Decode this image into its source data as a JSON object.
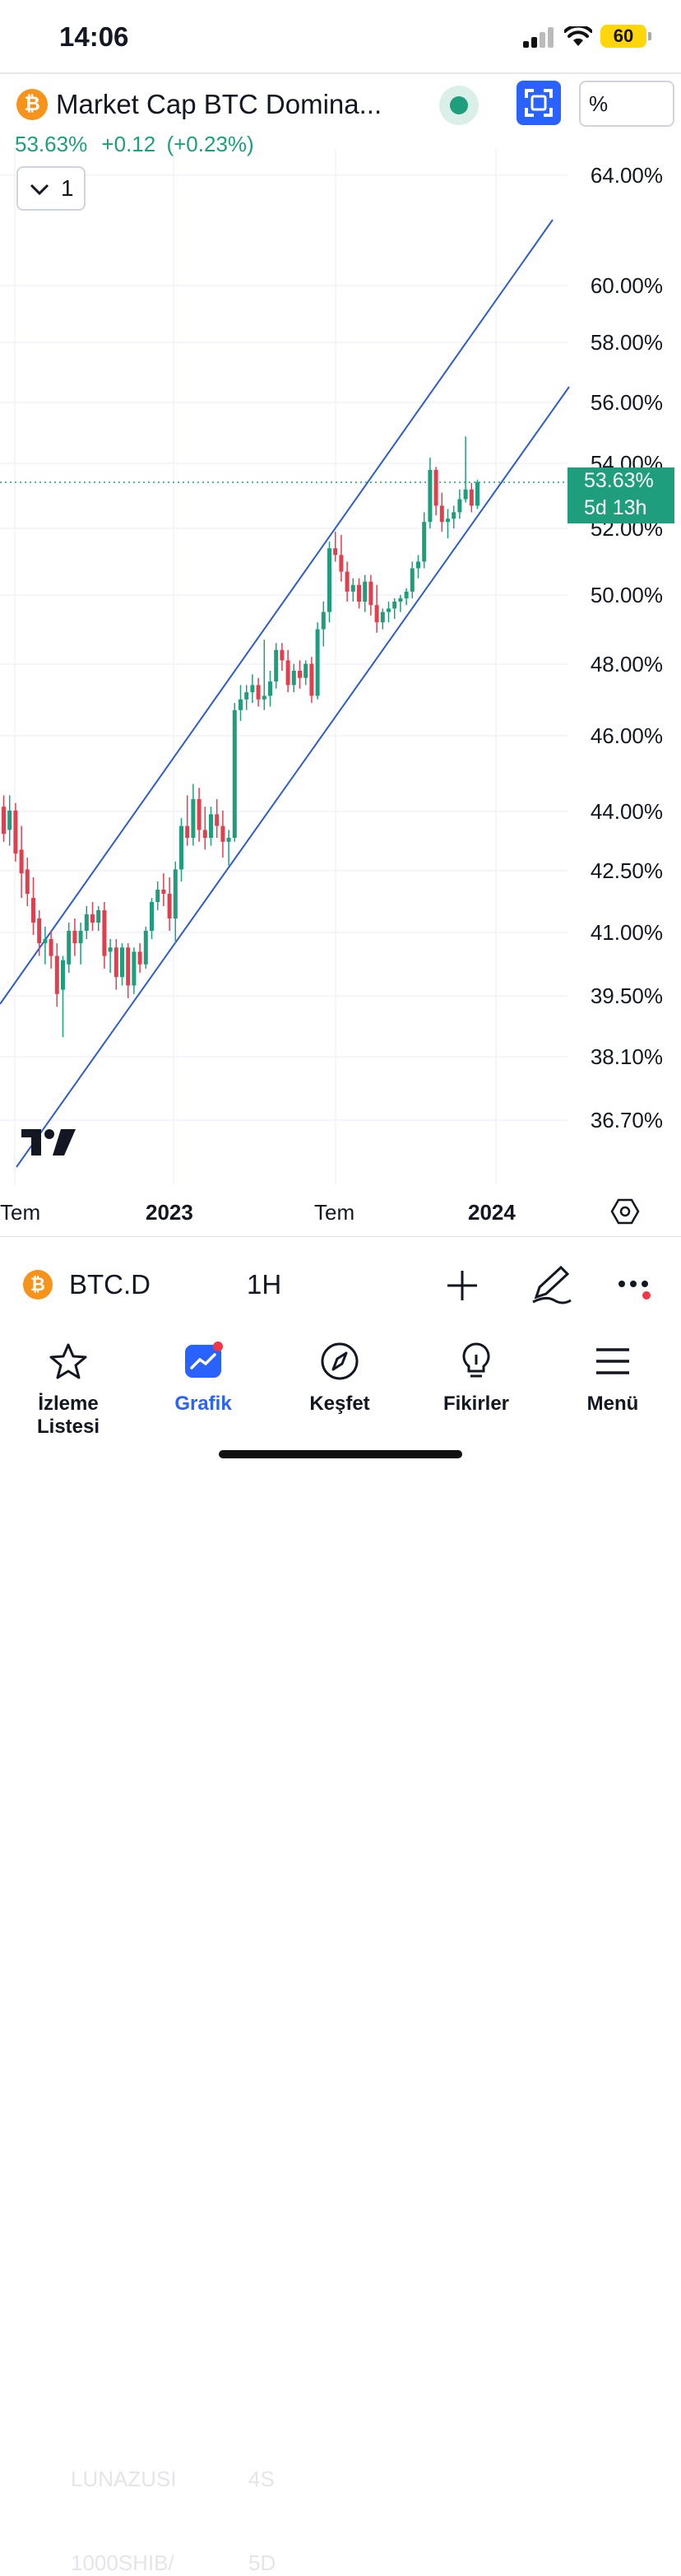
{
  "status_bar": {
    "time": "14:06",
    "battery": "60"
  },
  "header": {
    "symbol_title": "Market Cap BTC Domina...",
    "last_price": "53.63%",
    "change": "+0.12",
    "change_percent": "(+0.23%)",
    "interval_button": "1",
    "scale_button": "%",
    "btc_logo_glyph": "₿"
  },
  "colors": {
    "up": "#1e9e7c",
    "down": "#e0404d",
    "channel": "#2d5ccf",
    "accent": "#2962ff"
  },
  "chart_data": {
    "type": "candlestick",
    "y_ticks": [
      "64.00%",
      "60.00%",
      "58.00%",
      "56.00%",
      "54.00%",
      "52.00%",
      "50.00%",
      "48.00%",
      "46.00%",
      "44.00%",
      "42.50%",
      "41.00%",
      "39.50%",
      "38.10%",
      "36.70%"
    ],
    "x_ticks": [
      "Tem",
      "2023",
      "Tem",
      "2024"
    ],
    "price_tag": {
      "value": "53.63%",
      "countdown": "5d 13h"
    },
    "candles": [
      [
        44.3,
        44.6,
        43.4,
        43.6
      ],
      [
        43.7,
        44.6,
        43.3,
        44.2
      ],
      [
        44.2,
        44.4,
        42.9,
        43.1
      ],
      [
        43.2,
        43.8,
        42.0,
        42.6
      ],
      [
        42.7,
        43.0,
        41.8,
        42.1
      ],
      [
        42.0,
        42.5,
        41.1,
        41.4
      ],
      [
        41.5,
        41.7,
        40.6,
        40.9
      ],
      [
        40.9,
        41.3,
        40.4,
        41.0
      ],
      [
        41.0,
        41.2,
        40.3,
        40.6
      ],
      [
        40.6,
        40.9,
        39.4,
        39.7
      ],
      [
        39.8,
        40.6,
        38.7,
        40.5
      ],
      [
        40.4,
        41.4,
        40.2,
        41.2
      ],
      [
        41.2,
        41.5,
        40.6,
        40.9
      ],
      [
        40.9,
        41.4,
        40.4,
        41.2
      ],
      [
        41.2,
        41.8,
        41.0,
        41.6
      ],
      [
        41.6,
        41.9,
        41.2,
        41.4
      ],
      [
        41.4,
        41.8,
        41.2,
        41.7
      ],
      [
        41.7,
        41.9,
        40.3,
        40.6
      ],
      [
        40.7,
        41.0,
        40.2,
        40.8
      ],
      [
        40.8,
        41.0,
        39.8,
        40.1
      ],
      [
        40.1,
        40.9,
        39.9,
        40.8
      ],
      [
        40.8,
        40.9,
        39.6,
        39.9
      ],
      [
        39.9,
        40.8,
        39.7,
        40.7
      ],
      [
        40.7,
        40.9,
        40.2,
        40.4
      ],
      [
        40.4,
        41.3,
        40.3,
        41.2
      ],
      [
        41.2,
        42.0,
        41.0,
        41.9
      ],
      [
        41.9,
        42.4,
        41.7,
        42.2
      ],
      [
        42.2,
        42.6,
        41.8,
        42.1
      ],
      [
        42.1,
        42.5,
        41.2,
        41.5
      ],
      [
        41.5,
        42.9,
        40.9,
        42.7
      ],
      [
        42.7,
        44.0,
        42.4,
        43.8
      ],
      [
        43.8,
        44.6,
        43.3,
        43.5
      ],
      [
        43.5,
        44.9,
        43.3,
        44.5
      ],
      [
        44.5,
        44.8,
        43.4,
        43.7
      ],
      [
        43.7,
        44.3,
        43.2,
        43.5
      ],
      [
        43.5,
        44.3,
        43.3,
        44.1
      ],
      [
        44.1,
        44.5,
        43.5,
        43.8
      ],
      [
        43.8,
        44.2,
        43.0,
        43.4
      ],
      [
        43.4,
        43.7,
        42.8,
        43.5
      ],
      [
        43.5,
        47.1,
        43.4,
        46.9
      ],
      [
        46.9,
        47.6,
        46.6,
        47.2
      ],
      [
        47.2,
        47.6,
        46.9,
        47.4
      ],
      [
        47.4,
        47.9,
        47.1,
        47.6
      ],
      [
        47.6,
        47.8,
        47.0,
        47.2
      ],
      [
        47.2,
        48.9,
        46.9,
        47.3
      ],
      [
        47.3,
        48.0,
        47.0,
        47.7
      ],
      [
        47.7,
        48.8,
        47.5,
        48.6
      ],
      [
        48.6,
        48.8,
        48.0,
        48.3
      ],
      [
        48.3,
        48.6,
        47.4,
        47.6
      ],
      [
        47.6,
        48.2,
        47.4,
        48.0
      ],
      [
        48.0,
        48.3,
        47.5,
        47.8
      ],
      [
        47.8,
        48.3,
        47.6,
        48.2
      ],
      [
        48.2,
        48.4,
        47.1,
        47.3
      ],
      [
        47.3,
        49.4,
        47.2,
        49.2
      ],
      [
        49.2,
        50.0,
        48.7,
        49.7
      ],
      [
        49.7,
        51.8,
        49.4,
        51.6
      ],
      [
        51.6,
        52.1,
        51.2,
        51.4
      ],
      [
        51.4,
        52.0,
        50.6,
        50.9
      ],
      [
        50.9,
        51.2,
        50.0,
        50.3
      ],
      [
        50.3,
        50.7,
        50.0,
        50.5
      ],
      [
        50.5,
        50.7,
        49.8,
        50.0
      ],
      [
        50.0,
        50.8,
        49.7,
        50.6
      ],
      [
        50.6,
        50.8,
        49.6,
        49.9
      ],
      [
        49.9,
        50.5,
        49.1,
        49.4
      ],
      [
        49.4,
        49.8,
        49.2,
        49.7
      ],
      [
        49.7,
        50.0,
        49.4,
        49.8
      ],
      [
        49.8,
        50.1,
        49.5,
        50.0
      ],
      [
        50.0,
        50.2,
        49.7,
        50.1
      ],
      [
        50.1,
        50.4,
        49.9,
        50.3
      ],
      [
        50.3,
        51.2,
        50.1,
        51.0
      ],
      [
        51.0,
        51.4,
        50.7,
        51.2
      ],
      [
        51.2,
        52.7,
        51.0,
        52.4
      ],
      [
        52.4,
        54.4,
        52.2,
        54.0
      ],
      [
        54.0,
        54.1,
        52.6,
        52.9
      ],
      [
        52.9,
        53.3,
        52.1,
        52.4
      ],
      [
        52.4,
        52.8,
        51.9,
        52.5
      ],
      [
        52.5,
        52.9,
        52.2,
        52.7
      ],
      [
        52.7,
        53.4,
        52.5,
        53.1
      ],
      [
        53.1,
        55.1,
        53.0,
        53.4
      ],
      [
        53.4,
        53.6,
        52.7,
        52.9
      ],
      [
        52.9,
        53.7,
        52.8,
        53.63
      ]
    ]
  },
  "symbol_bar": {
    "code": "BTC.D",
    "interval": "1H",
    "ghost_top_name": "LUNAZUSI",
    "ghost_top_interval": "4S",
    "ghost_bottom_name": "1000SHIB/",
    "ghost_bottom_interval": "5D"
  },
  "nav": {
    "items": [
      {
        "label": "İzleme Listesi",
        "icon": "star-icon"
      },
      {
        "label": "Grafik",
        "icon": "chart-icon"
      },
      {
        "label": "Keşfet",
        "icon": "compass-icon"
      },
      {
        "label": "Fikirler",
        "icon": "lightbulb-icon"
      },
      {
        "label": "Menü",
        "icon": "hamburger-icon"
      }
    ]
  }
}
